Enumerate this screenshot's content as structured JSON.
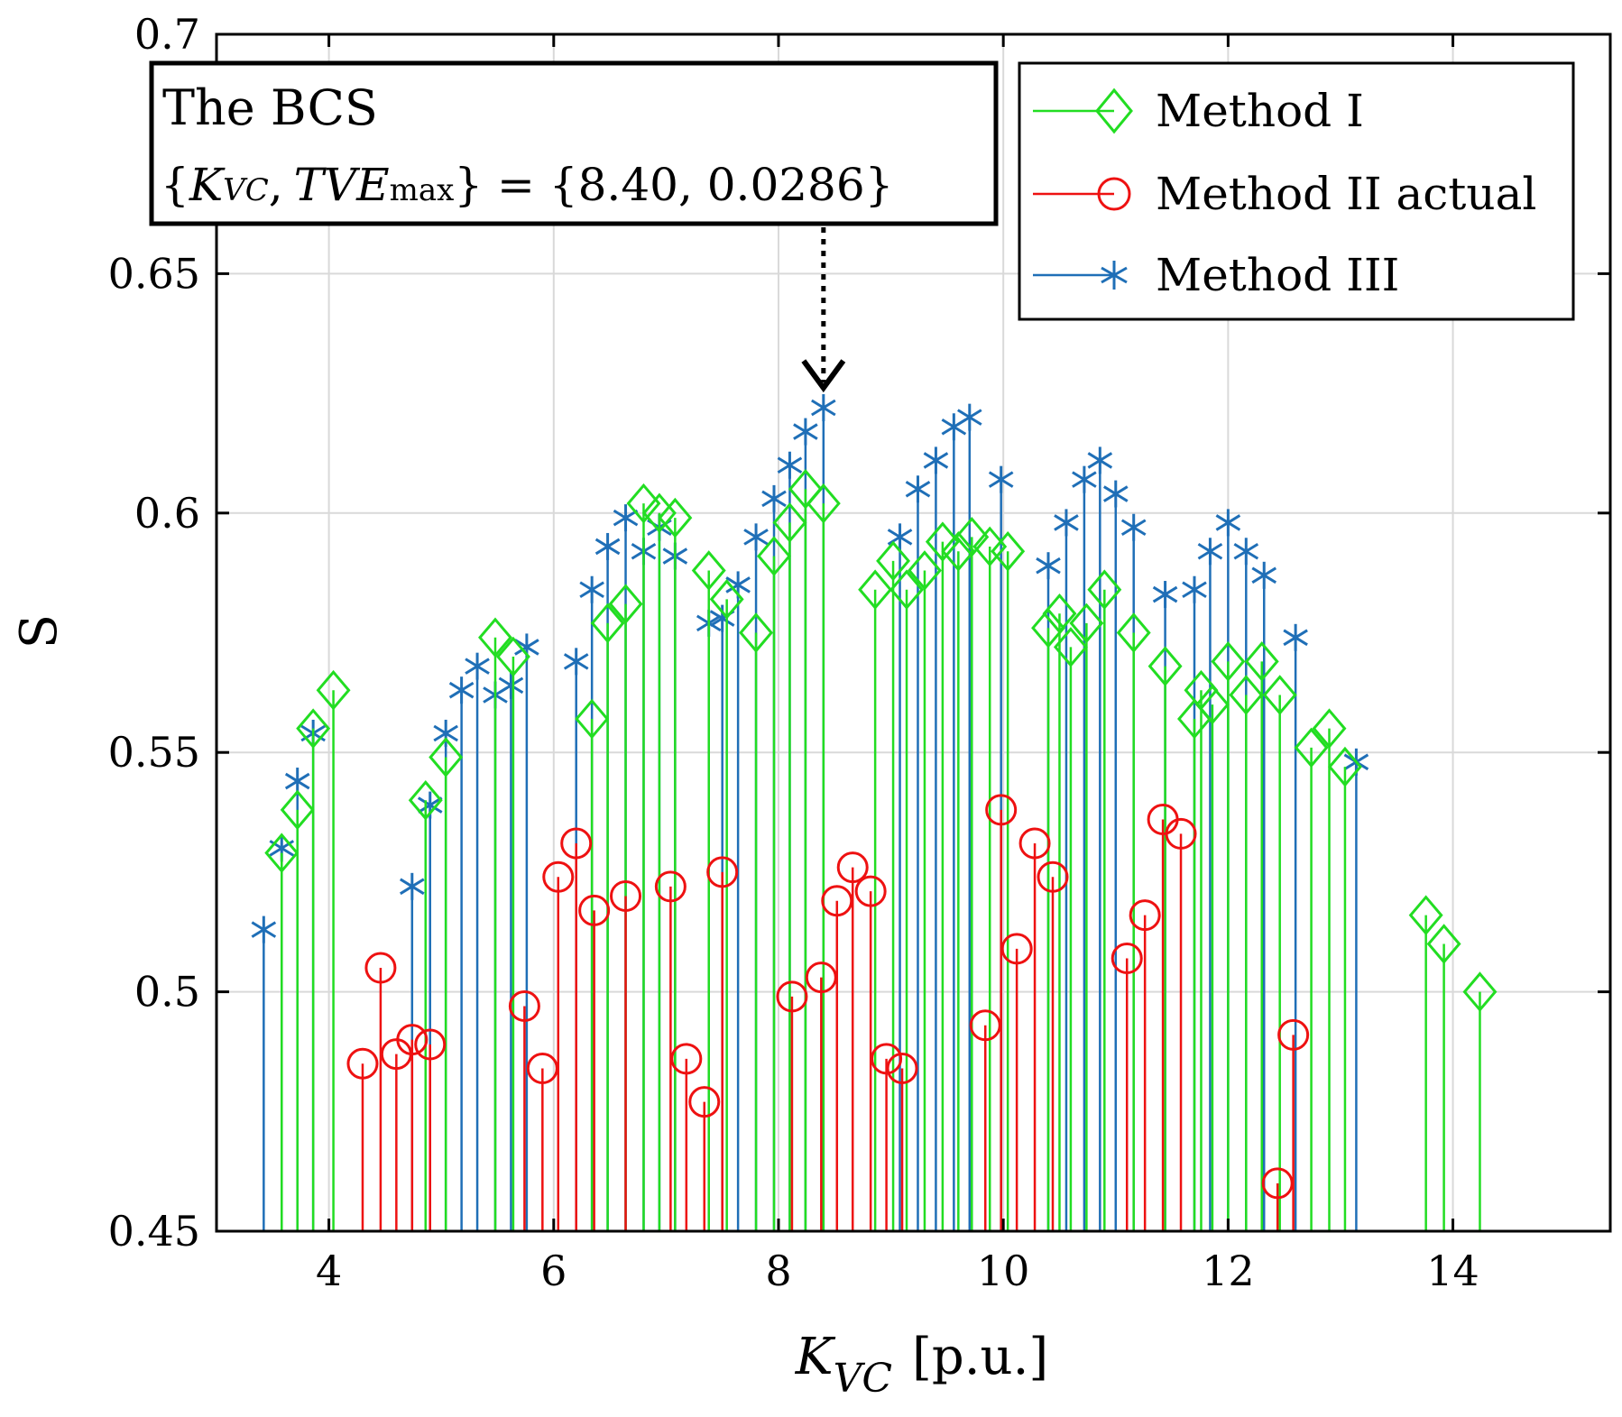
{
  "chart_data": {
    "type": "stem",
    "title": "",
    "xlabel": {
      "main": "K",
      "sub": "VC",
      "unit": "[p.u.]"
    },
    "ylabel": "S",
    "xlim": [
      3,
      15.4
    ],
    "ylim": [
      0.45,
      0.7
    ],
    "xticks": [
      4,
      6,
      8,
      10,
      12,
      14
    ],
    "yticks": [
      0.45,
      0.5,
      0.55,
      0.6,
      0.65,
      0.7
    ],
    "xtick_labels": [
      "4",
      "6",
      "8",
      "10",
      "12",
      "14"
    ],
    "ytick_labels": [
      "0.45",
      "0.5",
      "0.55",
      "0.6",
      "0.65",
      "0.7"
    ],
    "grid": true,
    "legend_position": "top-right",
    "annotation": {
      "title": "The BCS",
      "open": "{",
      "k": "K",
      "k_sub": "VC",
      "comma": ",",
      "tve": "TVE",
      "tve_sub": "max",
      "equals": "} = {8.40, 0.0286}",
      "target_x": 8.4,
      "target_y": 0.622
    },
    "series": [
      {
        "name": "Method III",
        "color": "#1f6fb7",
        "marker": "asterisk",
        "points": [
          [
            3.42,
            0.513
          ],
          [
            3.58,
            0.53
          ],
          [
            3.72,
            0.544
          ],
          [
            3.86,
            0.554
          ],
          [
            4.74,
            0.522
          ],
          [
            4.9,
            0.539
          ],
          [
            5.04,
            0.554
          ],
          [
            5.18,
            0.563
          ],
          [
            5.32,
            0.568
          ],
          [
            5.48,
            0.562
          ],
          [
            5.62,
            0.564
          ],
          [
            5.76,
            0.572
          ],
          [
            6.2,
            0.569
          ],
          [
            6.34,
            0.584
          ],
          [
            6.48,
            0.593
          ],
          [
            6.64,
            0.599
          ],
          [
            6.8,
            0.592
          ],
          [
            6.94,
            0.597
          ],
          [
            7.08,
            0.591
          ],
          [
            7.38,
            0.577
          ],
          [
            7.5,
            0.578
          ],
          [
            7.64,
            0.585
          ],
          [
            7.8,
            0.595
          ],
          [
            7.96,
            0.603
          ],
          [
            8.1,
            0.61
          ],
          [
            8.24,
            0.617
          ],
          [
            8.4,
            0.622
          ],
          [
            9.08,
            0.595
          ],
          [
            9.24,
            0.605
          ],
          [
            9.4,
            0.611
          ],
          [
            9.56,
            0.618
          ],
          [
            9.7,
            0.62
          ],
          [
            9.98,
            0.607
          ],
          [
            10.4,
            0.589
          ],
          [
            10.56,
            0.598
          ],
          [
            10.72,
            0.607
          ],
          [
            10.86,
            0.611
          ],
          [
            11.0,
            0.604
          ],
          [
            11.16,
            0.597
          ],
          [
            11.44,
            0.583
          ],
          [
            11.7,
            0.584
          ],
          [
            11.84,
            0.592
          ],
          [
            12.0,
            0.598
          ],
          [
            12.16,
            0.592
          ],
          [
            12.32,
            0.587
          ],
          [
            12.6,
            0.574
          ],
          [
            13.14,
            0.548
          ]
        ]
      },
      {
        "name": "Method I",
        "color": "#22dd22",
        "marker": "diamond",
        "points": [
          [
            3.58,
            0.529
          ],
          [
            3.72,
            0.538
          ],
          [
            3.86,
            0.555
          ],
          [
            4.04,
            0.563
          ],
          [
            4.86,
            0.54
          ],
          [
            5.04,
            0.549
          ],
          [
            5.48,
            0.574
          ],
          [
            5.64,
            0.57
          ],
          [
            6.34,
            0.557
          ],
          [
            6.48,
            0.577
          ],
          [
            6.64,
            0.581
          ],
          [
            6.8,
            0.602
          ],
          [
            6.94,
            0.6
          ],
          [
            7.08,
            0.599
          ],
          [
            7.38,
            0.588
          ],
          [
            7.54,
            0.582
          ],
          [
            7.8,
            0.575
          ],
          [
            7.96,
            0.591
          ],
          [
            8.1,
            0.598
          ],
          [
            8.24,
            0.605
          ],
          [
            8.4,
            0.602
          ],
          [
            8.86,
            0.584
          ],
          [
            9.02,
            0.59
          ],
          [
            9.14,
            0.584
          ],
          [
            9.3,
            0.588
          ],
          [
            9.46,
            0.594
          ],
          [
            9.6,
            0.592
          ],
          [
            9.72,
            0.595
          ],
          [
            9.88,
            0.593
          ],
          [
            10.04,
            0.592
          ],
          [
            10.4,
            0.576
          ],
          [
            10.5,
            0.579
          ],
          [
            10.6,
            0.572
          ],
          [
            10.74,
            0.577
          ],
          [
            10.9,
            0.584
          ],
          [
            11.16,
            0.575
          ],
          [
            11.44,
            0.568
          ],
          [
            11.7,
            0.557
          ],
          [
            11.76,
            0.563
          ],
          [
            11.86,
            0.56
          ],
          [
            12.0,
            0.569
          ],
          [
            12.16,
            0.562
          ],
          [
            12.3,
            0.569
          ],
          [
            12.46,
            0.562
          ],
          [
            12.74,
            0.551
          ],
          [
            12.9,
            0.555
          ],
          [
            13.04,
            0.547
          ],
          [
            13.76,
            0.516
          ],
          [
            13.92,
            0.51
          ],
          [
            14.24,
            0.5
          ]
        ]
      },
      {
        "name": "Method II actual",
        "color": "#ee1111",
        "marker": "circle",
        "points": [
          [
            4.3,
            0.485
          ],
          [
            4.46,
            0.505
          ],
          [
            4.6,
            0.487
          ],
          [
            4.74,
            0.49
          ],
          [
            4.9,
            0.489
          ],
          [
            5.74,
            0.497
          ],
          [
            5.9,
            0.484
          ],
          [
            6.04,
            0.524
          ],
          [
            6.2,
            0.531
          ],
          [
            6.36,
            0.517
          ],
          [
            6.64,
            0.52
          ],
          [
            7.04,
            0.522
          ],
          [
            7.18,
            0.486
          ],
          [
            7.34,
            0.477
          ],
          [
            7.5,
            0.525
          ],
          [
            8.12,
            0.499
          ],
          [
            8.38,
            0.503
          ],
          [
            8.52,
            0.519
          ],
          [
            8.66,
            0.526
          ],
          [
            8.82,
            0.521
          ],
          [
            8.96,
            0.486
          ],
          [
            9.1,
            0.484
          ],
          [
            9.84,
            0.493
          ],
          [
            9.98,
            0.538
          ],
          [
            10.12,
            0.509
          ],
          [
            10.28,
            0.531
          ],
          [
            10.44,
            0.524
          ],
          [
            11.1,
            0.507
          ],
          [
            11.26,
            0.516
          ],
          [
            11.42,
            0.536
          ],
          [
            11.58,
            0.533
          ],
          [
            12.44,
            0.46
          ],
          [
            12.58,
            0.491
          ]
        ]
      }
    ],
    "legend": [
      "Method I",
      "Method II actual",
      "Method III"
    ]
  }
}
